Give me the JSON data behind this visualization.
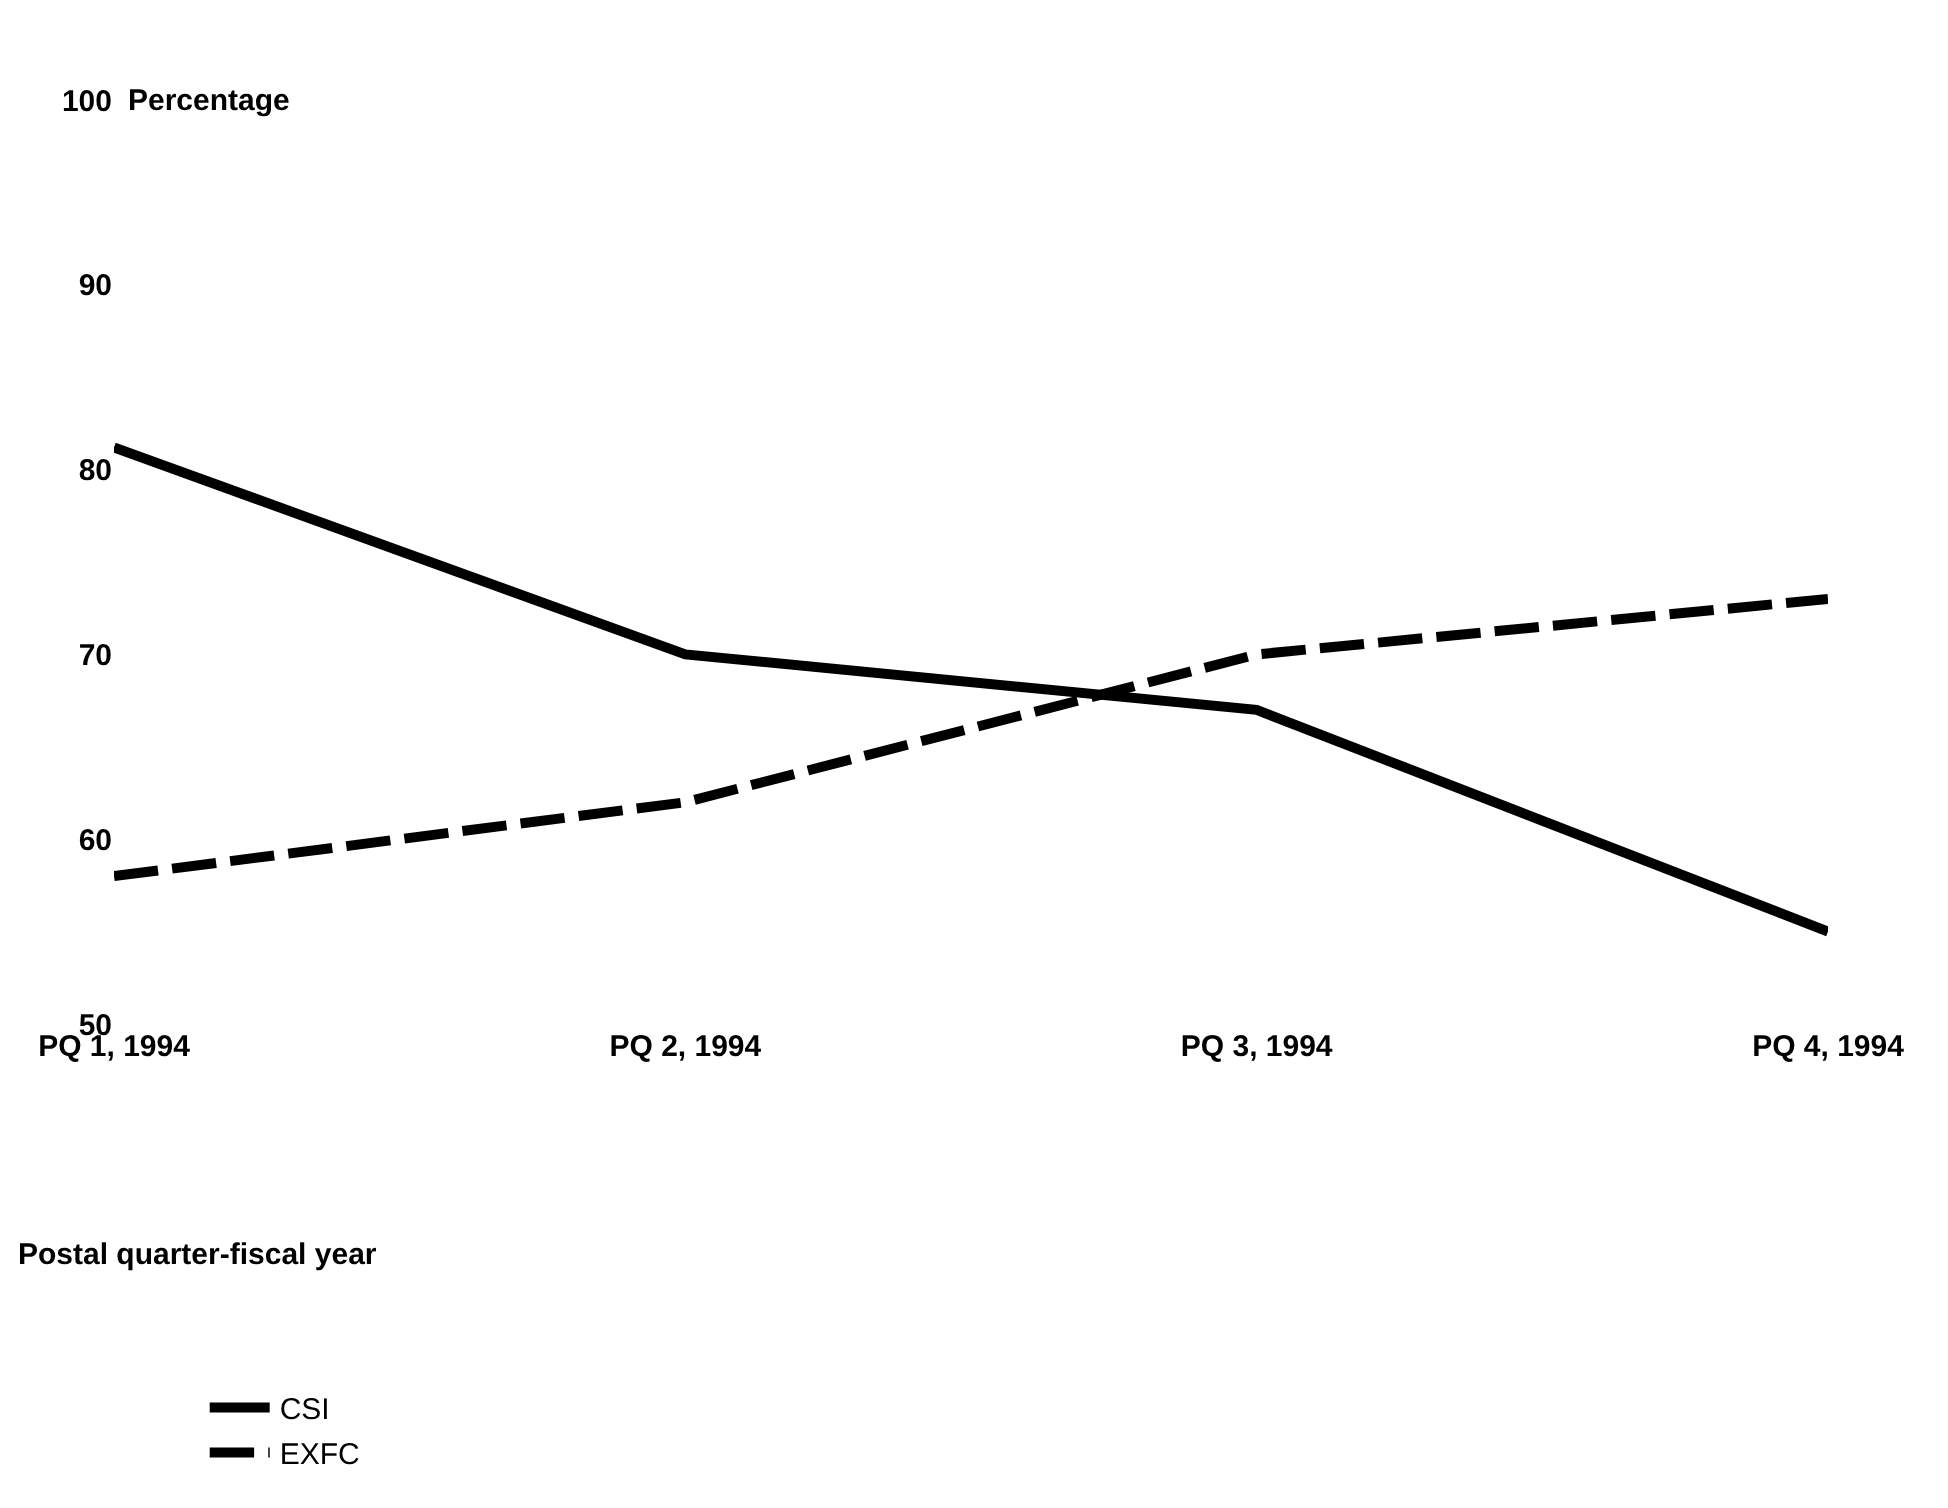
{
  "chart_data": {
    "type": "line",
    "ylabel": "Percentage",
    "annotations": [
      "Postal quarter-fiscal year"
    ],
    "categories": [
      "PQ 1, 1994",
      "PQ 2, 1994",
      "PQ 3, 1994",
      "PQ 4, 1994"
    ],
    "ylim": [
      50,
      100
    ],
    "yticks": [
      50,
      60,
      70,
      80,
      90,
      100
    ],
    "legend": "bottom left",
    "marker": "none",
    "series": [
      {
        "name": "CSI",
        "color": "#000000",
        "line_style": "solid",
        "values": [
          81.2,
          70,
          67,
          55
        ]
      },
      {
        "name": "EXFC",
        "color": "#000000",
        "line_style": "dashed",
        "values": [
          58,
          62,
          70,
          73
        ]
      }
    ]
  }
}
